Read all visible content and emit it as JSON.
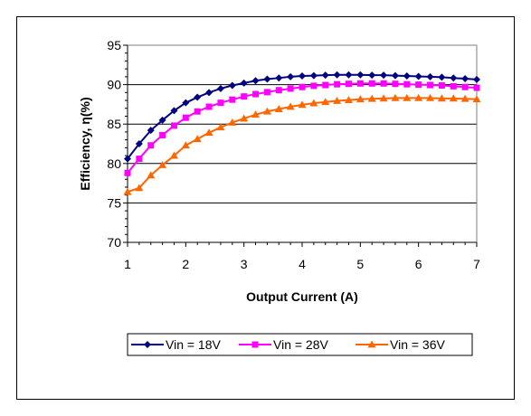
{
  "chart_data": {
    "type": "line",
    "xlabel": "Output Current (A)",
    "ylabel": "Efficiency, η(%)",
    "xlim": [
      1,
      7
    ],
    "ylim": [
      70,
      95
    ],
    "xticks": [
      "1",
      "2",
      "3",
      "4",
      "5",
      "6",
      "7"
    ],
    "yticks": [
      "70",
      "75",
      "80",
      "85",
      "90",
      "95"
    ],
    "grid": "horizontal",
    "legend_position": "bottom",
    "series": [
      {
        "name": "Vin = 18V",
        "color": "#000080",
        "marker": "diamond",
        "x": [
          1.0,
          1.2,
          1.4,
          1.6,
          1.8,
          2.0,
          2.2,
          2.4,
          2.6,
          2.8,
          3.0,
          3.2,
          3.4,
          3.6,
          3.8,
          4.0,
          4.2,
          4.4,
          4.6,
          4.8,
          5.0,
          5.2,
          5.4,
          5.6,
          5.8,
          6.0,
          6.2,
          6.4,
          6.6,
          6.8,
          7.0
        ],
        "y": [
          80.6,
          82.5,
          84.2,
          85.5,
          86.7,
          87.7,
          88.4,
          89.0,
          89.5,
          89.9,
          90.2,
          90.5,
          90.7,
          90.85,
          91.0,
          91.1,
          91.15,
          91.2,
          91.25,
          91.25,
          91.25,
          91.2,
          91.2,
          91.15,
          91.1,
          91.05,
          91.0,
          90.95,
          90.85,
          90.75,
          90.65
        ]
      },
      {
        "name": "Vin = 28V",
        "color": "#FF00FF",
        "marker": "square",
        "x": [
          1.0,
          1.2,
          1.4,
          1.6,
          1.8,
          2.0,
          2.2,
          2.4,
          2.6,
          2.8,
          3.0,
          3.2,
          3.4,
          3.6,
          3.8,
          4.0,
          4.2,
          4.4,
          4.6,
          4.8,
          5.0,
          5.2,
          5.4,
          5.6,
          5.8,
          6.0,
          6.2,
          6.4,
          6.6,
          6.8,
          7.0
        ],
        "y": [
          78.8,
          80.6,
          82.3,
          83.6,
          84.8,
          85.8,
          86.6,
          87.2,
          87.7,
          88.1,
          88.5,
          88.8,
          89.05,
          89.3,
          89.5,
          89.7,
          89.85,
          89.95,
          90.05,
          90.1,
          90.15,
          90.15,
          90.15,
          90.1,
          90.05,
          90.0,
          89.95,
          89.9,
          89.8,
          89.7,
          89.6
        ]
      },
      {
        "name": "Vin = 36V",
        "color": "#FF6600",
        "marker": "triangle",
        "x": [
          1.0,
          1.2,
          1.4,
          1.6,
          1.8,
          2.0,
          2.2,
          2.4,
          2.6,
          2.8,
          3.0,
          3.2,
          3.4,
          3.6,
          3.8,
          4.0,
          4.2,
          4.4,
          4.6,
          4.8,
          5.0,
          5.2,
          5.4,
          5.6,
          5.8,
          6.0,
          6.2,
          6.4,
          6.6,
          6.8,
          7.0
        ],
        "y": [
          76.4,
          76.9,
          78.5,
          79.8,
          81.0,
          82.3,
          83.1,
          83.9,
          84.6,
          85.2,
          85.7,
          86.2,
          86.6,
          86.9,
          87.2,
          87.45,
          87.65,
          87.8,
          87.95,
          88.05,
          88.15,
          88.2,
          88.25,
          88.3,
          88.3,
          88.3,
          88.3,
          88.25,
          88.25,
          88.2,
          88.15
        ]
      }
    ]
  }
}
